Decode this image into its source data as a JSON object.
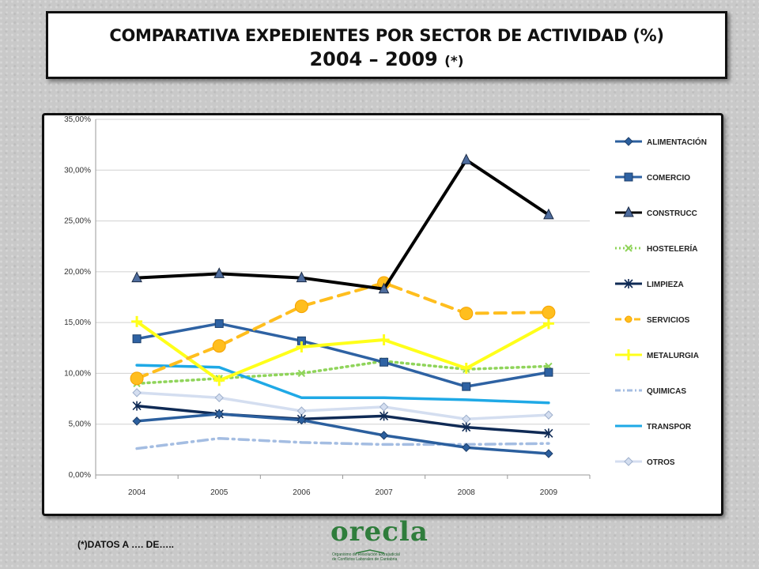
{
  "title": {
    "line1": "COMPARATIVA EXPEDIENTES POR SECTOR DE ACTIVIDAD (%)",
    "line2_main": "2004 – 2009",
    "line2_note": "(*)"
  },
  "footnote": "(*)DATOS A …. DE…..",
  "logo": {
    "word": "orecla",
    "subtitle_line1": "Organismo de Resolución Extrajudicial",
    "subtitle_line2": "de Conflictos Laborales de Cantabria"
  },
  "chart_data": {
    "type": "line",
    "categories": [
      "2004",
      "2005",
      "2006",
      "2007",
      "2008",
      "2009"
    ],
    "ylim": [
      0,
      35
    ],
    "yticks": [
      0,
      5,
      10,
      15,
      20,
      25,
      30,
      35
    ],
    "ytick_labels": [
      "0,00%",
      "5,00%",
      "10,00%",
      "15,00%",
      "20,00%",
      "25,00%",
      "30,00%",
      "35,00%"
    ],
    "grid": true,
    "legend_position": "right",
    "series": [
      {
        "name": "ALIMENTACIÓN",
        "values": [
          5.3,
          6.0,
          5.4,
          3.9,
          2.7,
          2.1
        ],
        "color": "#2b5f9e",
        "marker": "diamond",
        "dash": "solid"
      },
      {
        "name": "COMERCIO",
        "values": [
          13.4,
          14.9,
          13.2,
          11.1,
          8.7,
          10.1
        ],
        "color": "#2e62a3",
        "marker": "square",
        "dash": "solid"
      },
      {
        "name": "CONSTRUCC",
        "values": [
          19.4,
          19.8,
          19.4,
          18.3,
          31.0,
          25.6
        ],
        "color": "#000000",
        "marker": "triangle",
        "dash": "solid"
      },
      {
        "name": "HOSTELERÍA",
        "values": [
          9.0,
          9.5,
          10.0,
          11.2,
          10.4,
          10.7
        ],
        "color": "#8fd45a",
        "marker": "x",
        "dash": "dotted"
      },
      {
        "name": "LIMPIEZA",
        "values": [
          6.8,
          6.0,
          5.5,
          5.8,
          4.7,
          4.1
        ],
        "color": "#0f2a55",
        "marker": "star",
        "dash": "solid"
      },
      {
        "name": "SERVICIOS",
        "values": [
          9.5,
          12.7,
          16.6,
          18.9,
          15.9,
          16.0
        ],
        "color": "#ffbe1e",
        "marker": "circle",
        "dash": "dashed"
      },
      {
        "name": "METALURGIA",
        "values": [
          15.1,
          9.3,
          12.6,
          13.3,
          10.5,
          14.9
        ],
        "color": "#ffff1a",
        "marker": "plus",
        "dash": "solid"
      },
      {
        "name": "QUIMICAS",
        "values": [
          2.6,
          3.6,
          3.2,
          3.0,
          3.0,
          3.1
        ],
        "color": "#a4bde2",
        "marker": "none",
        "dash": "dashdot"
      },
      {
        "name": "TRANSPOR",
        "values": [
          10.8,
          10.6,
          7.6,
          7.6,
          7.4,
          7.1
        ],
        "color": "#1fa9e6",
        "marker": "none",
        "dash": "solid"
      },
      {
        "name": "OTROS",
        "values": [
          8.1,
          7.6,
          6.3,
          6.7,
          5.5,
          5.9
        ],
        "color": "#d4def0",
        "marker": "diamond",
        "dash": "solid"
      }
    ]
  }
}
